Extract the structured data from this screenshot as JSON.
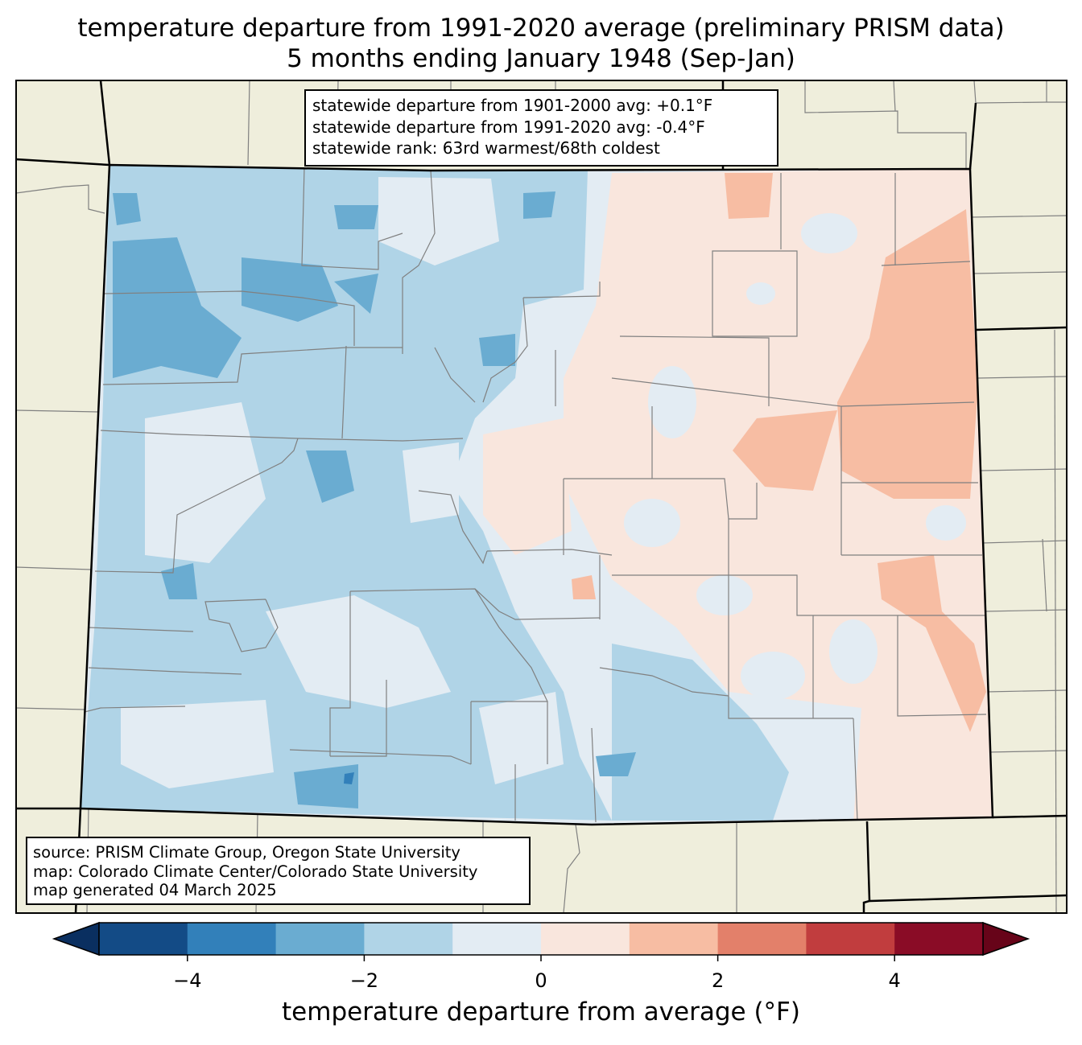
{
  "title": {
    "line1": "temperature departure from 1991-2020 average (preliminary PRISM data)",
    "line2": "5 months ending January 1948 (Sep-Jan)"
  },
  "stats": {
    "line1": "statewide departure from 1901-2000 avg: +0.1°F",
    "line2": "statewide departure from 1991-2020 avg: -0.4°F",
    "line3": "statewide rank: 63rd warmest/68th coldest"
  },
  "source": {
    "line1": "source: PRISM Climate Group, Oregon State University",
    "line2": "map: Colorado Climate Center/Colorado State University",
    "line3": "map generated 04 March 2025"
  },
  "colorbar": {
    "label": "temperature departure from average (°F)",
    "range": [
      -5,
      5
    ],
    "ticks": [
      "−4",
      "−2",
      "0",
      "2",
      "4"
    ],
    "bins": [
      {
        "from": -5,
        "to": -4,
        "color": "#134b86"
      },
      {
        "from": -4,
        "to": -3,
        "color": "#3280ba"
      },
      {
        "from": -3,
        "to": -2,
        "color": "#6aacd1"
      },
      {
        "from": -2,
        "to": -1,
        "color": "#b0d4e7"
      },
      {
        "from": -1,
        "to": 0,
        "color": "#e3ecf3"
      },
      {
        "from": 0,
        "to": 1,
        "color": "#f9e6dd"
      },
      {
        "from": 1,
        "to": 2,
        "color": "#f7bda3"
      },
      {
        "from": 2,
        "to": 3,
        "color": "#e3806a"
      },
      {
        "from": 3,
        "to": 4,
        "color": "#c13d3e"
      },
      {
        "from": 4,
        "to": 5,
        "color": "#8a0c26"
      }
    ],
    "under_color": "#0a2f60",
    "over_color": "#670419"
  },
  "map_colors": {
    "land_outside": "#efeedc",
    "state_border": "#000000",
    "county_border": "#808080"
  }
}
